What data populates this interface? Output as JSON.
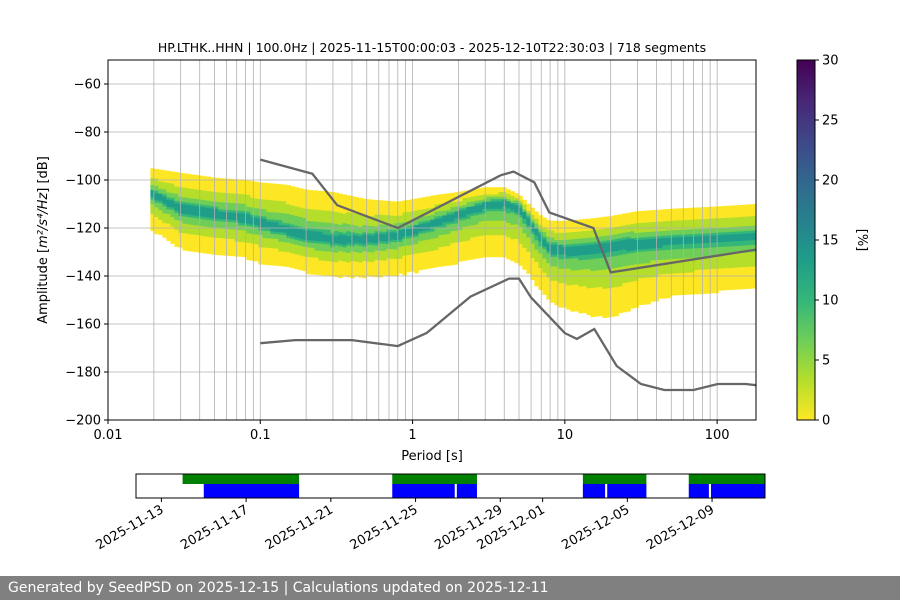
{
  "chart_data": [
    {
      "type": "heatmap",
      "title": "HP.LTHK..HHN | 100.0Hz | 2025-11-15T00:00:03 - 2025-12-10T22:30:03 | 718 segments",
      "xlabel": "Period [s]",
      "ylabel_prefix": "Amplitude [",
      "ylabel_math": "m²/s⁴/Hz",
      "ylabel_suffix": "] [dB]",
      "x_scale": "log",
      "xlim": [
        0.01,
        180
      ],
      "ylim": [
        -200,
        -50
      ],
      "x_ticks": [
        {
          "value": 0.01,
          "label": "0.01"
        },
        {
          "value": 0.1,
          "label": "0.1"
        },
        {
          "value": 1,
          "label": "1"
        },
        {
          "value": 10,
          "label": "10"
        },
        {
          "value": 100,
          "label": "100"
        }
      ],
      "y_ticks": [
        {
          "value": -60,
          "label": "−60"
        },
        {
          "value": -80,
          "label": "−80"
        },
        {
          "value": -100,
          "label": "−100"
        },
        {
          "value": -120,
          "label": "−120"
        },
        {
          "value": -140,
          "label": "−140"
        },
        {
          "value": -160,
          "label": "−160"
        },
        {
          "value": -180,
          "label": "−180"
        },
        {
          "value": -200,
          "label": "−200"
        }
      ],
      "grid": true,
      "ppsd_band": {
        "periods": [
          0.019,
          0.03,
          0.05,
          0.08,
          0.1,
          0.15,
          0.2,
          0.3,
          0.5,
          0.8,
          1.0,
          1.5,
          2.0,
          3.0,
          4.0,
          5.0,
          6.0,
          7.0,
          8.0,
          10,
          15,
          20,
          30,
          50,
          100,
          180
        ],
        "mode": [
          -105,
          -112,
          -114,
          -116,
          -118,
          -121,
          -123,
          -125,
          -125,
          -123,
          -121,
          -117,
          -114,
          -110,
          -109,
          -111,
          -118,
          -124,
          -128,
          -129,
          -128,
          -127,
          -126,
          -125,
          -124,
          -123
        ],
        "lower": [
          -120,
          -128,
          -131,
          -132,
          -134,
          -136,
          -138,
          -140,
          -140,
          -139,
          -138,
          -136,
          -134,
          -131,
          -132,
          -135,
          -140,
          -146,
          -150,
          -153,
          -156,
          -157,
          -152,
          -148,
          -146,
          -144
        ],
        "upper": [
          -95,
          -97,
          -99,
          -100,
          -101,
          -102,
          -104,
          -105,
          -108,
          -109,
          -108,
          -106,
          -105,
          -103,
          -103,
          -106,
          -111,
          -115,
          -117,
          -117,
          -116,
          -115,
          -113,
          -112,
          -111,
          -110
        ]
      },
      "nhnm": {
        "periods": [
          0.1,
          0.22,
          0.32,
          0.8,
          3.8,
          4.6,
          6.3,
          7.9,
          15.4,
          20
        ],
        "values": [
          -91.5,
          -97.4,
          -110.5,
          -120,
          -98,
          -96.5,
          -101,
          -113.5,
          -120,
          -138.5
        ],
        "tail": [
          {
            "p": 20,
            "v": -138.5
          },
          {
            "p": 180,
            "v": -129
          }
        ]
      },
      "nlnm": {
        "periods": [
          0.1,
          0.17,
          0.4,
          0.8,
          1.24,
          2.4,
          4.3,
          5.0,
          6.0,
          10.0,
          12.0,
          15.6,
          21.9,
          31.6,
          45,
          70,
          101,
          154,
          180
        ],
        "values": [
          -168,
          -166.7,
          -166.7,
          -169.2,
          -163.7,
          -148.6,
          -141.1,
          -141.1,
          -149,
          -163.8,
          -166.2,
          -162.1,
          -177.5,
          -185,
          -187.5,
          -187.5,
          -185,
          -185,
          -185.5
        ]
      },
      "grid_periods": [
        0.02,
        0.03,
        0.04,
        0.05,
        0.06,
        0.07,
        0.08,
        0.09,
        0.2,
        0.3,
        0.4,
        0.5,
        0.6,
        0.7,
        0.8,
        0.9,
        2,
        3,
        4,
        5,
        6,
        7,
        8,
        9,
        20,
        30,
        40,
        50,
        60,
        70,
        80,
        90
      ]
    },
    {
      "type": "bar",
      "title": "",
      "x_tick_labels": [
        "2025-11-13",
        "2025-11-17",
        "2025-11-21",
        "2025-11-25",
        "2025-11-29",
        "2025-12-01",
        "2025-12-05",
        "2025-12-09"
      ],
      "x_tick_days": [
        -2,
        2,
        6,
        10,
        14,
        16,
        20,
        24
      ],
      "xlim_days": [
        -3.2,
        26.5
      ],
      "green_spans_days": [
        [
          -1.0,
          4.5
        ],
        [
          8.9,
          12.9
        ],
        [
          17.9,
          20.9
        ],
        [
          22.9,
          26.9
        ]
      ],
      "blue_spans_days": [
        [
          0.0,
          4.5
        ],
        [
          8.9,
          11.85
        ],
        [
          11.95,
          12.9
        ],
        [
          17.9,
          18.95
        ],
        [
          19.05,
          20.9
        ],
        [
          22.9,
          23.85
        ],
        [
          23.95,
          26.9
        ]
      ]
    },
    {
      "type": "heatmap",
      "title": "",
      "colorbar_label": "[%]",
      "ticks": [
        0,
        5,
        10,
        15,
        20,
        25,
        30
      ],
      "range": [
        0,
        30
      ],
      "colormap": [
        "#fde725",
        "#b5de2b",
        "#6ece58",
        "#35b779",
        "#1f9e89",
        "#26828e",
        "#31688e",
        "#3e4989",
        "#482878",
        "#440154"
      ]
    }
  ],
  "footer": {
    "text": "Generated by SeedPSD on 2025-12-15 | Calculations updated on 2025-12-11"
  }
}
